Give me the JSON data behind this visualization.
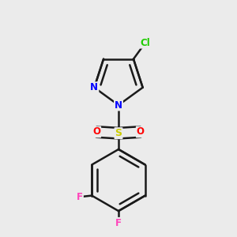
{
  "background_color": "#ebebeb",
  "bond_color": "#1a1a1a",
  "atom_colors": {
    "Cl": "#1ecc00",
    "N": "#0000ff",
    "S": "#cccc00",
    "O": "#ff0000",
    "F": "#ff44bb"
  },
  "bond_width": 1.8,
  "dbo": 0.022,
  "figsize": [
    3.0,
    3.0
  ],
  "dpi": 100
}
